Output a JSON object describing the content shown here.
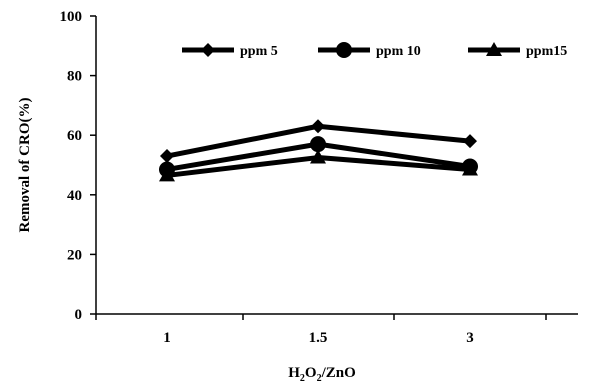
{
  "chart_data": {
    "type": "line",
    "categories": [
      "1",
      "1.5",
      "3"
    ],
    "series": [
      {
        "name": "ppm 5",
        "marker": "diamond",
        "values": [
          53,
          63,
          58
        ]
      },
      {
        "name": "ppm 10",
        "marker": "circle",
        "values": [
          48.5,
          57,
          49.5
        ]
      },
      {
        "name": "ppm15",
        "marker": "triangle",
        "values": [
          46.5,
          52.5,
          48.5
        ]
      }
    ],
    "xlabel": {
      "base1": "H",
      "sub1": "2",
      "base2": "O",
      "sub2": "2",
      "rest": "/ZnO"
    },
    "ylabel": "Removal of CRO(%)",
    "ylim": [
      0,
      100
    ],
    "yticks": [
      "0",
      "20",
      "40",
      "60",
      "80",
      "100"
    ],
    "grid": false,
    "legend_position": "top",
    "line_color": "#000000"
  }
}
